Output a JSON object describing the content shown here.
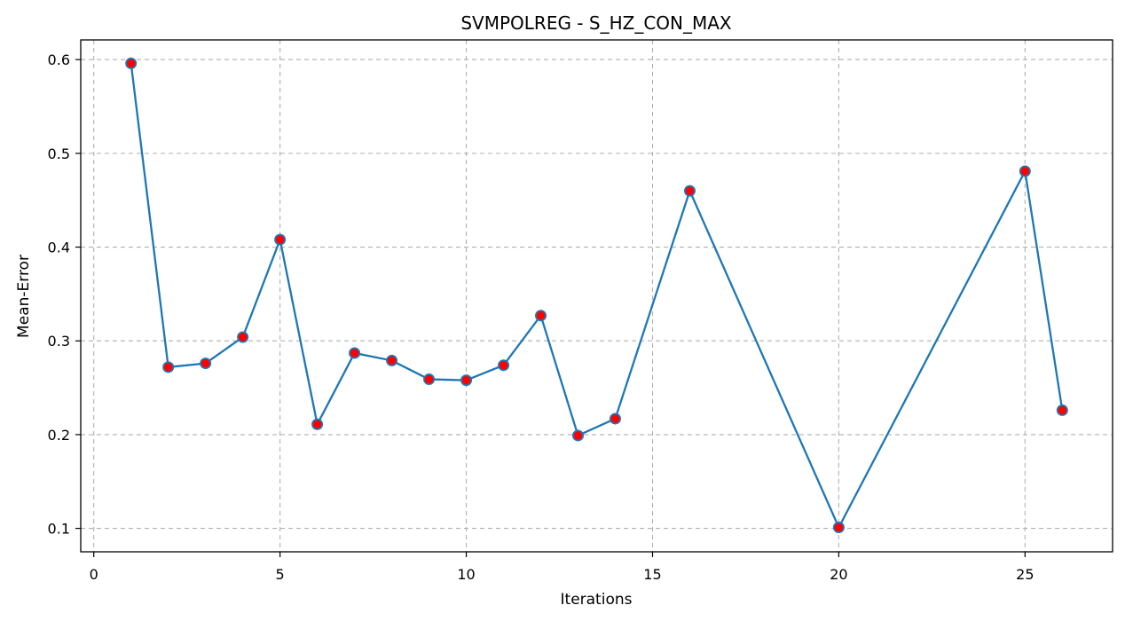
{
  "chart_data": {
    "type": "line",
    "title": "SVMPOLREG - S_HZ_CON_MAX",
    "xlabel": "Iterations",
    "ylabel": "Mean-Error",
    "xlim": [
      -0.35,
      27.35
    ],
    "ylim": [
      0.075,
      0.621
    ],
    "xticks": [
      0,
      5,
      10,
      15,
      20,
      25
    ],
    "yticks": [
      0.1,
      0.2,
      0.3,
      0.4,
      0.5,
      0.6
    ],
    "xtick_labels": [
      "0",
      "5",
      "10",
      "15",
      "20",
      "25"
    ],
    "ytick_labels": [
      "0.1",
      "0.2",
      "0.3",
      "0.4",
      "0.5",
      "0.6"
    ],
    "grid": true,
    "legend": false,
    "colors": {
      "line": "#1f77b4",
      "marker_fill": "#ff0000",
      "marker_edge": "#1f77b4",
      "grid": "#b0b0b0",
      "axes": "#000000"
    },
    "series": [
      {
        "x": [
          1,
          2,
          3,
          4,
          5,
          6,
          7,
          8,
          9,
          10,
          11,
          12,
          13,
          14,
          16,
          20,
          25,
          26
        ],
        "y": [
          0.596,
          0.272,
          0.276,
          0.304,
          0.408,
          0.211,
          0.287,
          0.279,
          0.259,
          0.258,
          0.274,
          0.327,
          0.199,
          0.217,
          0.46,
          0.101,
          0.481,
          0.226
        ]
      }
    ]
  }
}
